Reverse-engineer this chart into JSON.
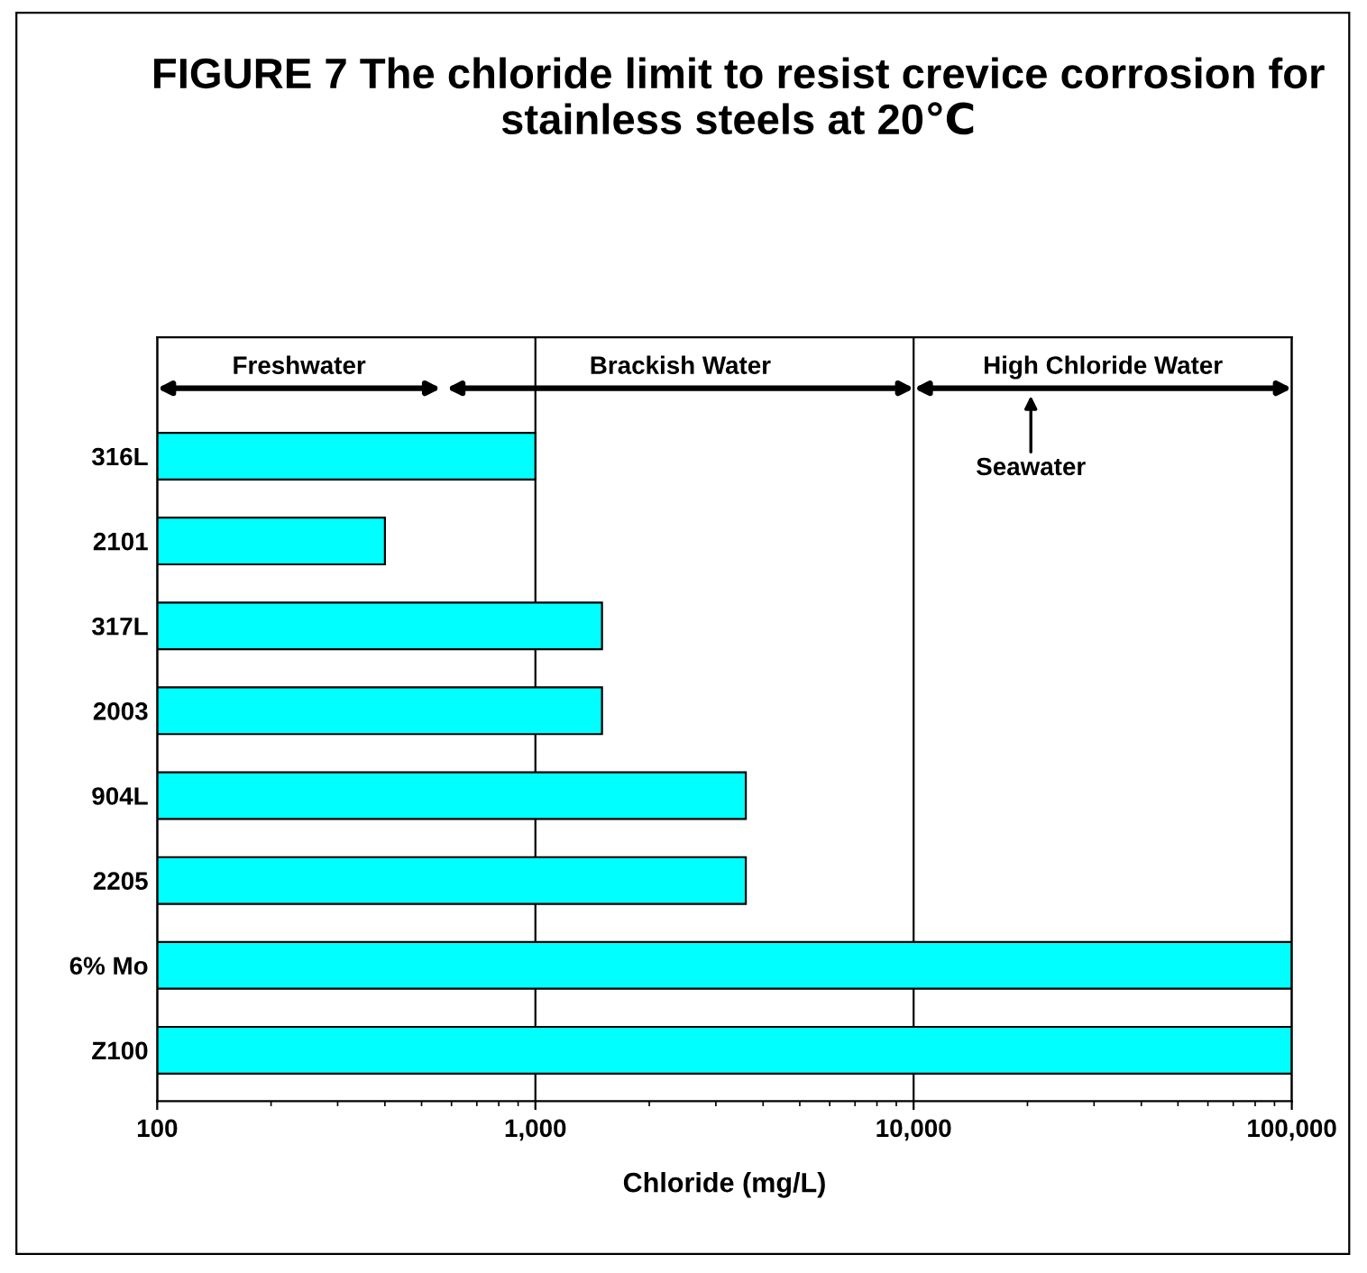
{
  "chart_data": {
    "type": "bar",
    "orientation": "horizontal",
    "title": "FIGURE 7 The chloride limit to resist crevice corrosion for stainless steels at 20℃",
    "xlabel": "Chloride (mg/L)",
    "categories": [
      "316L",
      "2101",
      "317L",
      "2003",
      "904L",
      "2205",
      "6% Mo",
      "Z100"
    ],
    "values": [
      1000,
      400,
      1500,
      1500,
      3600,
      3600,
      100000,
      100000
    ],
    "color": "#00ffff",
    "log": "x",
    "xlim": [
      100,
      100000
    ],
    "xticks": [
      {
        "value": 100,
        "label": "100"
      },
      {
        "value": 1000,
        "label": "1,000"
      },
      {
        "value": 10000,
        "label": "10,000"
      },
      {
        "value": 100000,
        "label": "100,000"
      }
    ],
    "grid": "x",
    "legend": false,
    "annotations": [
      "Freshwater",
      "Brackish Water",
      "High Chloride Water",
      "Seawater"
    ]
  }
}
